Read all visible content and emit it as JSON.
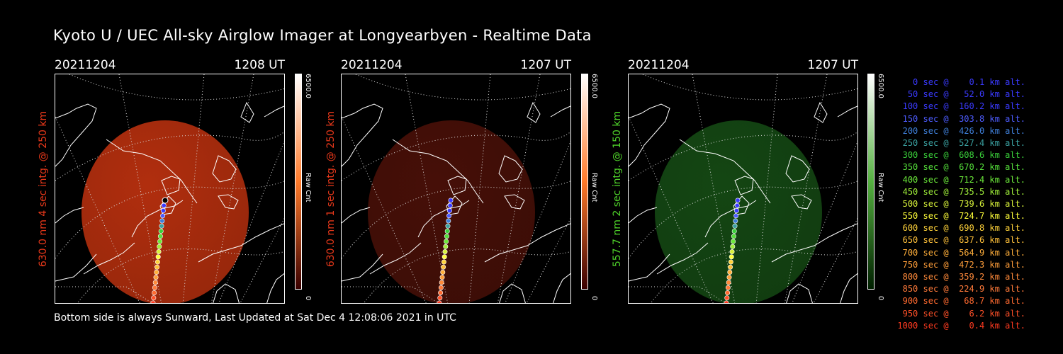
{
  "title": "Kyoto U / UEC All-sky Airglow Imager at Longyearbyen - Realtime Data",
  "panels": [
    {
      "date": "20211204",
      "time": "1208 UT",
      "label": "630.0 nm 4 sec intg. @ 250 km",
      "label_color": "#e8381a",
      "glow": "#c0320f",
      "glow_opacity": 0.92,
      "cbar_max": "6500.0",
      "cbar_unit": "Raw Cnt",
      "cbar_min": "0",
      "cbar_top": "#ffffff",
      "cbar_mid": "#ff7a2a",
      "cbar_bottom": "#3a0000"
    },
    {
      "date": "20211204",
      "time": "1207 UT",
      "label": "630.0 nm 1 sec intg. @ 250 km",
      "label_color": "#e8381a",
      "glow": "#4a1008",
      "glow_opacity": 0.95,
      "cbar_max": "6500.0",
      "cbar_unit": "Raw Cnt",
      "cbar_min": "0",
      "cbar_top": "#ffffff",
      "cbar_mid": "#ff7a2a",
      "cbar_bottom": "#3a0000"
    },
    {
      "date": "20211204",
      "time": "1207 UT",
      "label": "557.7 nm 2 sec intg. @ 150 km",
      "label_color": "#4fd32a",
      "glow": "#154a14",
      "glow_opacity": 0.95,
      "cbar_max": "6500.0",
      "cbar_unit": "Raw Cnt",
      "cbar_min": "0",
      "cbar_top": "#ffffff",
      "cbar_mid": "#55b040",
      "cbar_bottom": "#002000"
    }
  ],
  "legend": [
    {
      "text": "   0 sec @    0.1 km alt.",
      "color": "#3a3aff"
    },
    {
      "text": "  50 sec @   52.0 km alt.",
      "color": "#3a3aff"
    },
    {
      "text": " 100 sec @  160.2 km alt.",
      "color": "#3a3aff"
    },
    {
      "text": " 150 sec @  303.8 km alt.",
      "color": "#4d5cff"
    },
    {
      "text": " 200 sec @  426.0 km alt.",
      "color": "#3f7fd8"
    },
    {
      "text": " 250 sec @  527.4 km alt.",
      "color": "#3aa0a0"
    },
    {
      "text": " 300 sec @  608.6 km alt.",
      "color": "#3ad03a"
    },
    {
      "text": " 350 sec @  670.2 km alt.",
      "color": "#55e03a"
    },
    {
      "text": " 400 sec @  712.4 km alt.",
      "color": "#6be83a"
    },
    {
      "text": " 450 sec @  735.5 km alt.",
      "color": "#a0f03a"
    },
    {
      "text": " 500 sec @  739.6 km alt.",
      "color": "#d8f23a"
    },
    {
      "text": " 550 sec @  724.7 km alt.",
      "color": "#ffff3a"
    },
    {
      "text": " 600 sec @  690.8 km alt.",
      "color": "#ffd23a"
    },
    {
      "text": " 650 sec @  637.6 km alt.",
      "color": "#ffc03a"
    },
    {
      "text": " 700 sec @  564.9 km alt.",
      "color": "#ffae3a"
    },
    {
      "text": " 750 sec @  472.3 km alt.",
      "color": "#ff9e3a"
    },
    {
      "text": " 800 sec @  359.2 km alt.",
      "color": "#ff8a3a"
    },
    {
      "text": " 850 sec @  224.9 km alt.",
      "color": "#ff7a3a"
    },
    {
      "text": " 900 sec @   68.7 km alt.",
      "color": "#ff6a30"
    },
    {
      "text": " 950 sec @    6.2 km alt.",
      "color": "#ff5028"
    },
    {
      "text": "1000 sec @    0.4 km alt.",
      "color": "#ff3a20"
    }
  ],
  "footer": "Bottom side is always Sunward, Last Updated at Sat Dec  4 12:08:06 2021 in UTC"
}
